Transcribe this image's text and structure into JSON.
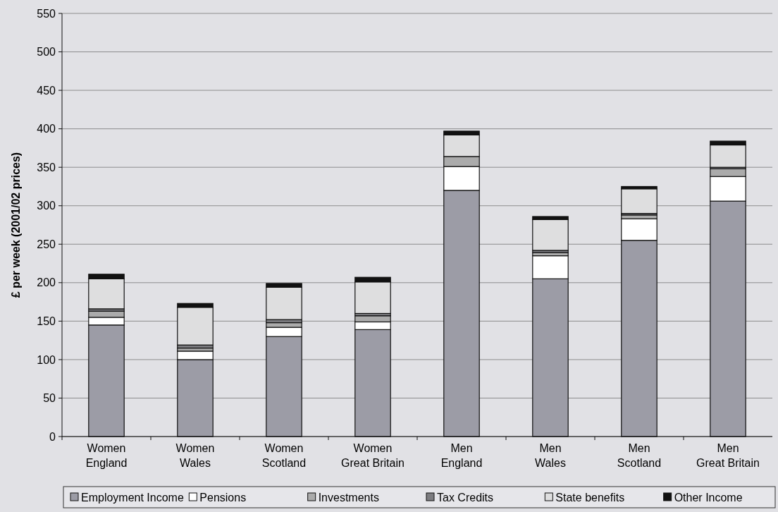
{
  "chart_data": {
    "type": "bar",
    "stacked": true,
    "ylabel": "£ per week (2001/02 prices)",
    "categories": [
      "Women\nEngland",
      "Women\nWales",
      "Women\nScotland",
      "Women\nGreat Britain",
      "Men\nEngland",
      "Men\nWales",
      "Men\nScotland",
      "Men\nGreat Britain"
    ],
    "series": [
      {
        "name": "Employment Income",
        "color": "#9c9ca6",
        "values": [
          145,
          100,
          130,
          139,
          320,
          205,
          255,
          306
        ]
      },
      {
        "name": "Pensions",
        "color": "#ffffff",
        "values": [
          10,
          11,
          12,
          10,
          31,
          30,
          28,
          32
        ]
      },
      {
        "name": "Investments",
        "color": "#ababab",
        "values": [
          8,
          4,
          6,
          8,
          13,
          4,
          5,
          10
        ]
      },
      {
        "name": "Tax Credits",
        "color": "#7c7c80",
        "values": [
          3,
          4,
          4,
          3,
          0,
          3,
          2,
          2
        ]
      },
      {
        "name": "State benefits",
        "color": "#dededf",
        "values": [
          39,
          49,
          42,
          41,
          28,
          40,
          32,
          29
        ]
      },
      {
        "name": "Other Income",
        "color": "#111111",
        "values": [
          6,
          5,
          5,
          6,
          5,
          4,
          3,
          5
        ]
      }
    ],
    "ylim": [
      0,
      550
    ],
    "yticks": [
      0,
      50,
      100,
      150,
      200,
      250,
      300,
      350,
      400,
      450,
      500,
      550
    ],
    "grid": "y",
    "legend": "bottom"
  }
}
